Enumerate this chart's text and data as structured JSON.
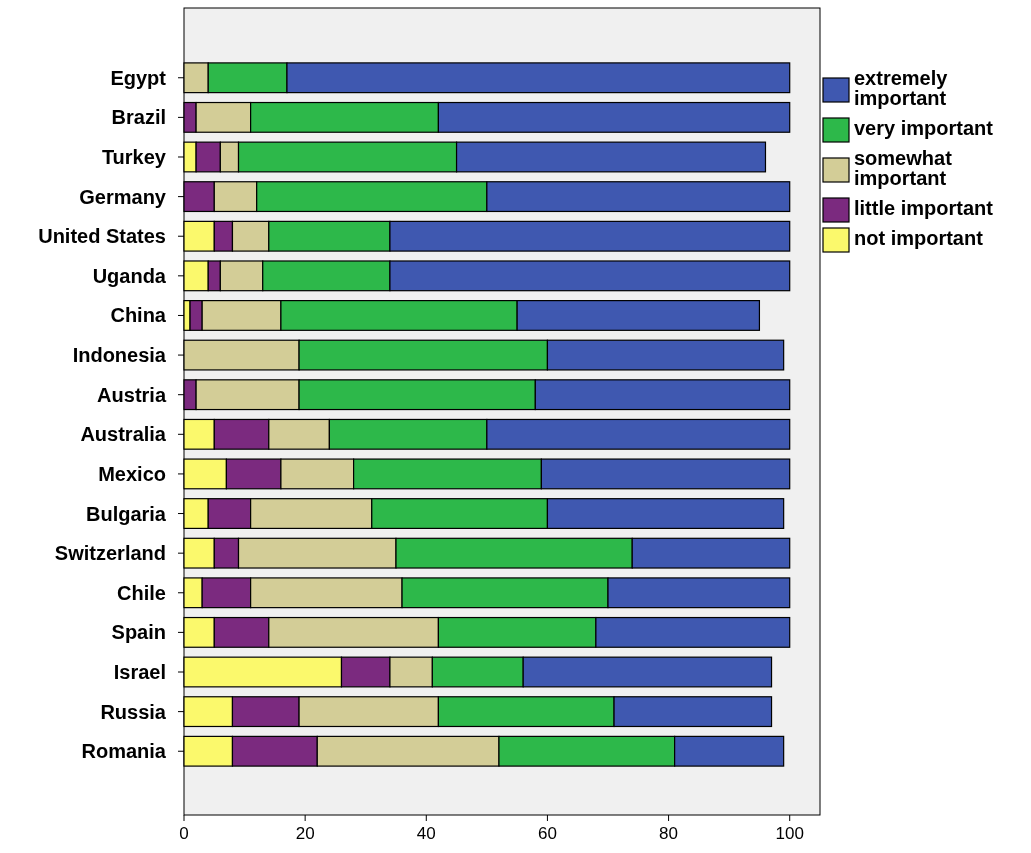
{
  "chart_data": {
    "type": "bar",
    "orientation": "horizontal",
    "stacked": true,
    "categories": [
      "Egypt",
      "Brazil",
      "Turkey",
      "Germany",
      "United States",
      "Uganda",
      "China",
      "Indonesia",
      "Austria",
      "Australia",
      "Mexico",
      "Bulgaria",
      "Switzerland",
      "Chile",
      "Spain",
      "Israel",
      "Russia",
      "Romania"
    ],
    "series": [
      {
        "name": "not important",
        "color": "#fbf96c",
        "values": [
          0,
          0,
          2,
          0,
          5,
          4,
          1,
          0,
          0,
          5,
          7,
          4,
          5,
          3,
          5,
          26,
          8,
          8
        ]
      },
      {
        "name": "little important",
        "color": "#7b2a7f",
        "values": [
          0,
          2,
          4,
          5,
          3,
          2,
          2,
          0,
          2,
          9,
          9,
          7,
          4,
          8,
          9,
          8,
          11,
          14
        ]
      },
      {
        "name": "somewhat important",
        "color": "#d3cd97",
        "values": [
          4,
          9,
          3,
          7,
          6,
          7,
          13,
          19,
          17,
          10,
          12,
          20,
          26,
          25,
          28,
          7,
          23,
          30
        ]
      },
      {
        "name": "very important",
        "color": "#2db84a",
        "values": [
          13,
          31,
          36,
          38,
          20,
          21,
          39,
          41,
          39,
          26,
          31,
          29,
          39,
          34,
          26,
          15,
          29,
          29
        ]
      },
      {
        "name": "extremely important",
        "color": "#3f58b0",
        "values": [
          83,
          58,
          51,
          50,
          66,
          66,
          40,
          39,
          42,
          50,
          41,
          39,
          26,
          30,
          32,
          41,
          26,
          18
        ]
      }
    ],
    "xlim": [
      0,
      105
    ],
    "xticks": [
      0,
      20,
      40,
      60,
      80,
      100
    ],
    "legend": "right",
    "grid": false
  }
}
